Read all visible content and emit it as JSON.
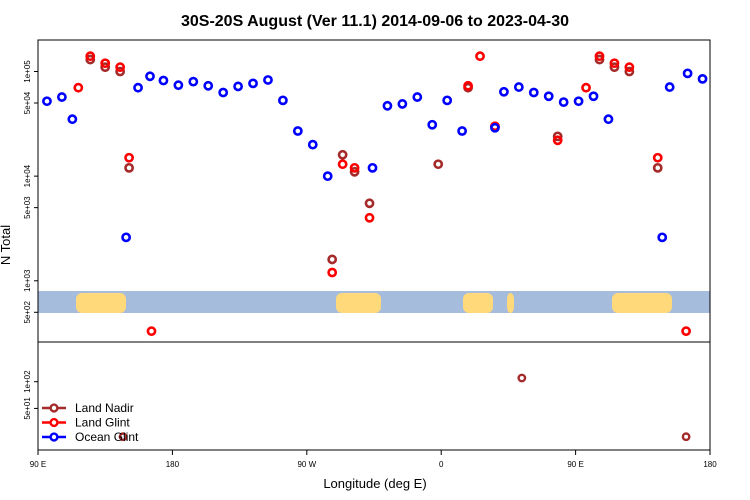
{
  "chart_data": {
    "type": "scatter",
    "title": "30S-20S August (Ver 11.1)   2014-09-06 to 2023-04-30",
    "xlabel": "Longitude (deg E)",
    "ylabel": "N Total",
    "x_ticks": [
      {
        "value": 90,
        "label": "90 E"
      },
      {
        "value": 180,
        "label": "180"
      },
      {
        "value": 270,
        "label": "90 W"
      },
      {
        "value": 360,
        "label": "0"
      },
      {
        "value": 450,
        "label": "90 E"
      },
      {
        "value": 540,
        "label": "180"
      }
    ],
    "xlim": [
      90,
      540
    ],
    "top_panel": {
      "scale": "log",
      "ylim": [
        260,
        200000
      ],
      "y_ticks": [
        {
          "value": 500,
          "label": "5e+02"
        },
        {
          "value": 1000,
          "label": "1e+03"
        },
        {
          "value": 5000,
          "label": "5e+03"
        },
        {
          "value": 10000,
          "label": "1e+04"
        },
        {
          "value": 50000,
          "label": "5e+04"
        },
        {
          "value": 100000,
          "label": "1e+05"
        }
      ]
    },
    "bottom_panel": {
      "scale": "log",
      "ylim": [
        17,
        280
      ],
      "y_ticks": [
        {
          "value": 50,
          "label": "5e+01"
        },
        {
          "value": 100,
          "label": "1e+02"
        }
      ]
    },
    "series": [
      {
        "name": "Land Nadir",
        "color": "#a52a2a",
        "points": [
          {
            "lon": 125,
            "n": 130000
          },
          {
            "lon": 135,
            "n": 110000
          },
          {
            "lon": 145,
            "n": 100000
          },
          {
            "lon": 151,
            "n": 12000
          },
          {
            "lon": 287,
            "n": 1600
          },
          {
            "lon": 294,
            "n": 16000
          },
          {
            "lon": 302,
            "n": 11000
          },
          {
            "lon": 312,
            "n": 5500
          },
          {
            "lon": 358,
            "n": 13000
          },
          {
            "lon": 378,
            "n": 70000
          },
          {
            "lon": 438,
            "n": 24000
          },
          {
            "lon": 466,
            "n": 130000
          },
          {
            "lon": 476,
            "n": 110000
          },
          {
            "lon": 486,
            "n": 100000
          },
          {
            "lon": 505,
            "n": 12000
          }
        ],
        "bottom_points": [
          {
            "lon": 147,
            "n": 24
          },
          {
            "lon": 414,
            "n": 110
          },
          {
            "lon": 524,
            "n": 24
          }
        ]
      },
      {
        "name": "Land Glint",
        "color": "#ff0000",
        "points": [
          {
            "lon": 117,
            "n": 70000
          },
          {
            "lon": 125,
            "n": 140000
          },
          {
            "lon": 135,
            "n": 120000
          },
          {
            "lon": 145,
            "n": 110000
          },
          {
            "lon": 151,
            "n": 15000
          },
          {
            "lon": 166,
            "n": 330
          },
          {
            "lon": 287,
            "n": 1200
          },
          {
            "lon": 294,
            "n": 13000
          },
          {
            "lon": 302,
            "n": 12000
          },
          {
            "lon": 312,
            "n": 4000
          },
          {
            "lon": 378,
            "n": 73000
          },
          {
            "lon": 386,
            "n": 140000
          },
          {
            "lon": 396,
            "n": 30000
          },
          {
            "lon": 438,
            "n": 22000
          },
          {
            "lon": 457,
            "n": 70000
          },
          {
            "lon": 466,
            "n": 140000
          },
          {
            "lon": 476,
            "n": 120000
          },
          {
            "lon": 486,
            "n": 110000
          },
          {
            "lon": 505,
            "n": 15000
          },
          {
            "lon": 524,
            "n": 330
          }
        ]
      },
      {
        "name": "Ocean Glint",
        "color": "#0000ff",
        "points": [
          {
            "lon": 96,
            "n": 52000
          },
          {
            "lon": 106,
            "n": 57000
          },
          {
            "lon": 113,
            "n": 35000
          },
          {
            "lon": 149,
            "n": 2600
          },
          {
            "lon": 157,
            "n": 70000
          },
          {
            "lon": 165,
            "n": 90000
          },
          {
            "lon": 174,
            "n": 82000
          },
          {
            "lon": 184,
            "n": 74000
          },
          {
            "lon": 194,
            "n": 80000
          },
          {
            "lon": 204,
            "n": 73000
          },
          {
            "lon": 214,
            "n": 63000
          },
          {
            "lon": 224,
            "n": 72000
          },
          {
            "lon": 234,
            "n": 77000
          },
          {
            "lon": 244,
            "n": 83000
          },
          {
            "lon": 254,
            "n": 53000
          },
          {
            "lon": 264,
            "n": 27000
          },
          {
            "lon": 274,
            "n": 20000
          },
          {
            "lon": 284,
            "n": 10000
          },
          {
            "lon": 314,
            "n": 12000
          },
          {
            "lon": 324,
            "n": 47000
          },
          {
            "lon": 334,
            "n": 49000
          },
          {
            "lon": 344,
            "n": 57000
          },
          {
            "lon": 354,
            "n": 31000
          },
          {
            "lon": 364,
            "n": 53000
          },
          {
            "lon": 374,
            "n": 27000
          },
          {
            "lon": 396,
            "n": 29000
          },
          {
            "lon": 402,
            "n": 64000
          },
          {
            "lon": 412,
            "n": 71000
          },
          {
            "lon": 422,
            "n": 63000
          },
          {
            "lon": 432,
            "n": 58000
          },
          {
            "lon": 442,
            "n": 51000
          },
          {
            "lon": 452,
            "n": 52000
          },
          {
            "lon": 462,
            "n": 58000
          },
          {
            "lon": 472,
            "n": 35000
          },
          {
            "lon": 525,
            "n": 96000
          },
          {
            "lon": 535,
            "n": 85000
          },
          {
            "lon": 508,
            "n": 2600
          },
          {
            "lon": 513,
            "n": 71000
          }
        ]
      }
    ],
    "legend": {
      "placement": "bottom-left"
    }
  }
}
